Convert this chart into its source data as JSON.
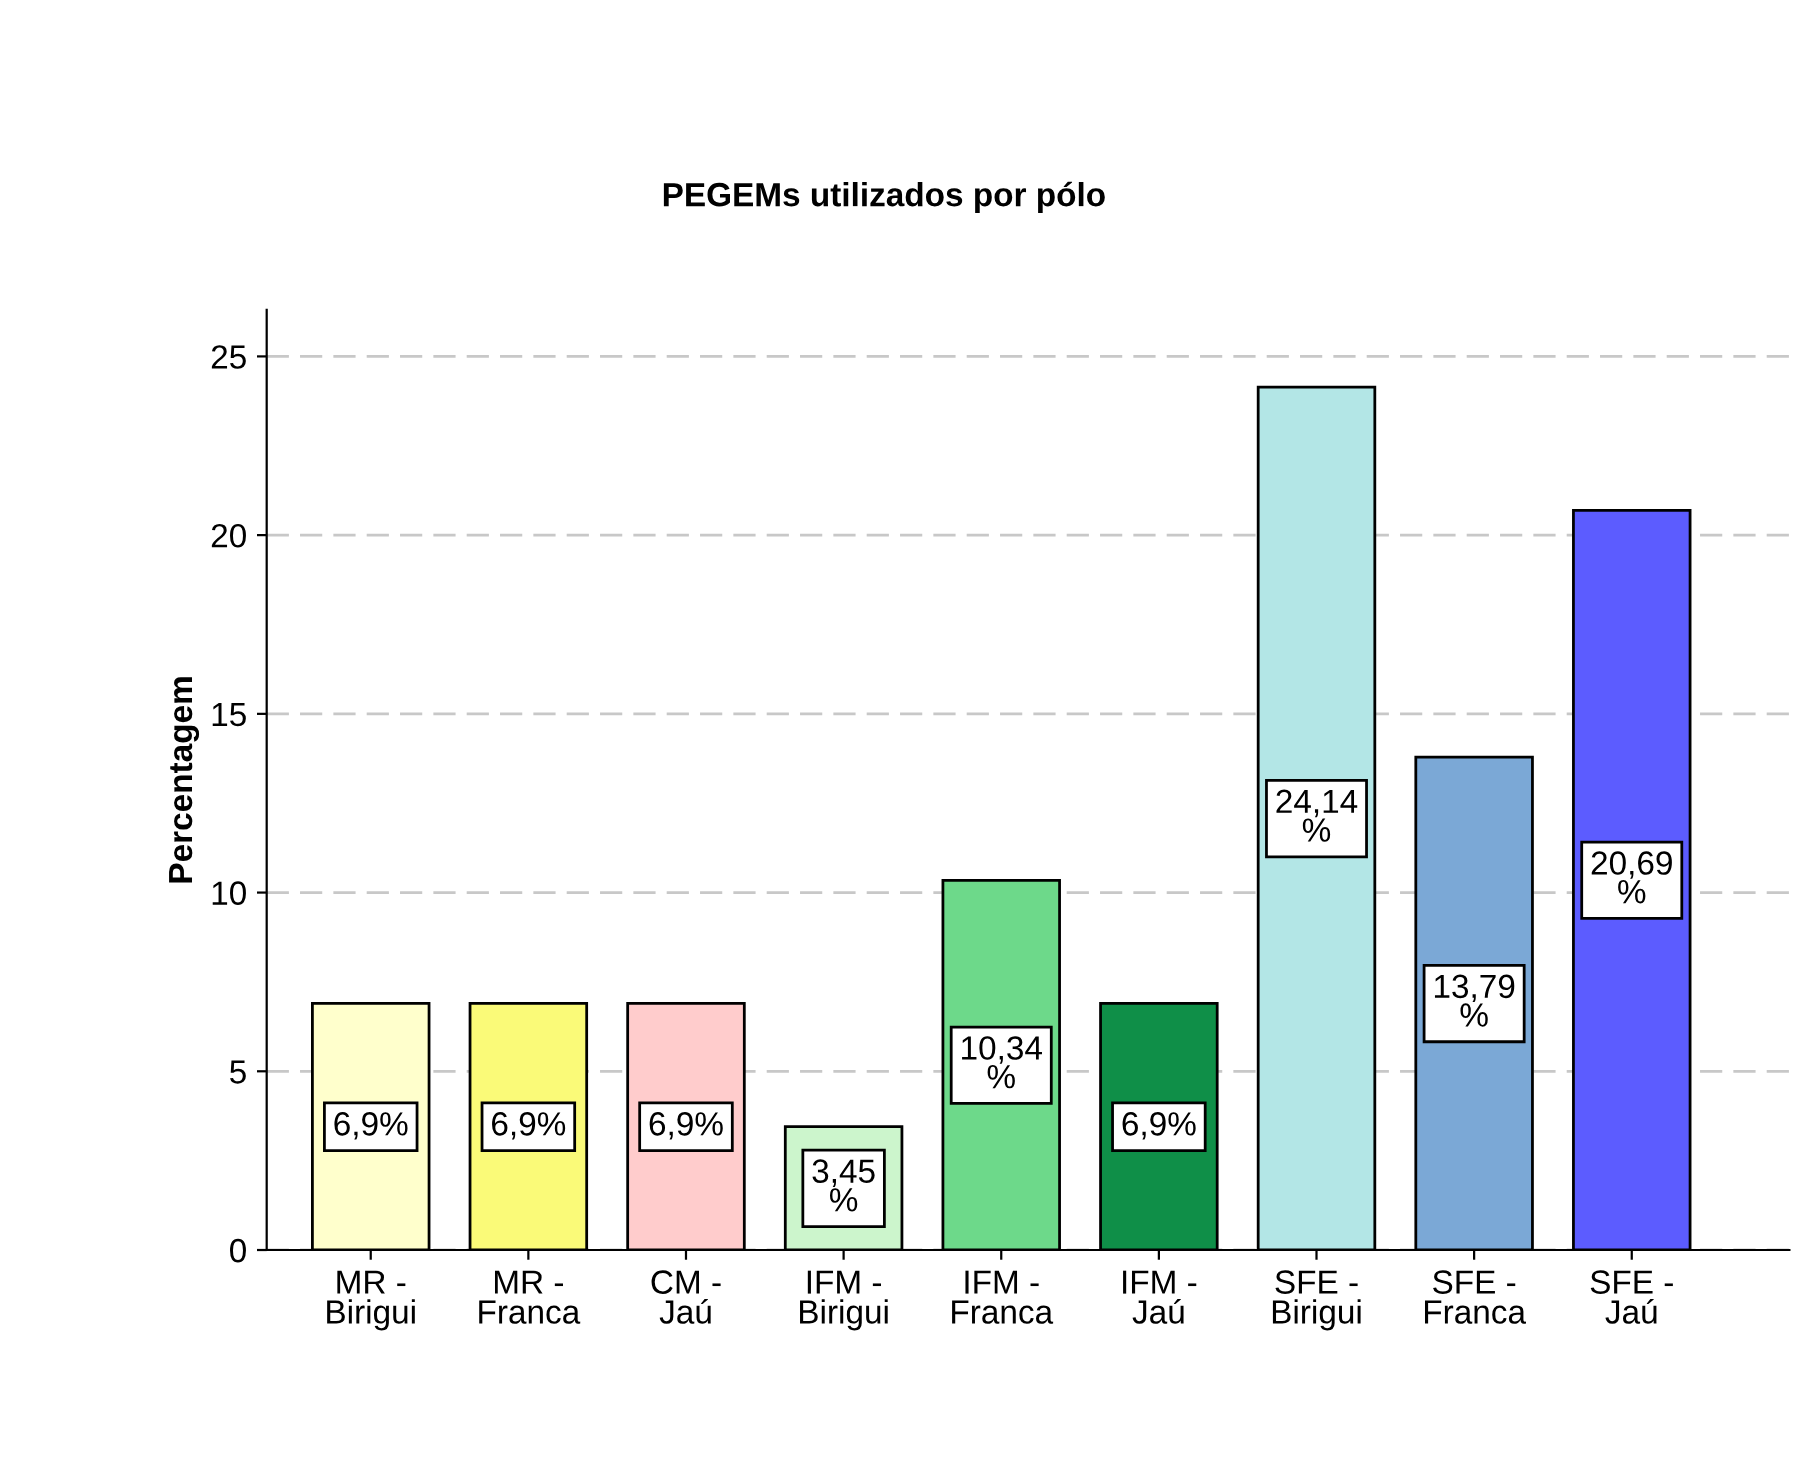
{
  "chart_data": {
    "type": "bar",
    "title": "PEGEMs utilizados por pólo",
    "ylabel": "Percentagem",
    "categories": [
      "MR -\nBirigui",
      "MR -\nFranca",
      "CM -\nJaú",
      "IFM -\nBirigui",
      "IFM -\nFranca",
      "IFM -\nJaú",
      "SFE -\nBirigui",
      "SFE -\nFranca",
      "SFE -\nJaú"
    ],
    "values": [
      6.9,
      6.9,
      6.9,
      3.45,
      10.34,
      6.9,
      24.14,
      13.79,
      20.69
    ],
    "colors": [
      "#ffffcc",
      "#fafa78",
      "#ffcccc",
      "#ccf5cc",
      "#6dd98a",
      "#0f8f48",
      "#b3e6e6",
      "#7ba8d6",
      "#5c5cff"
    ],
    "value_labels": [
      "6,9%",
      "6,9%",
      "6,9%",
      "3,45\n%",
      "10,34\n%",
      "6,9%",
      "24,14\n%",
      "13,79\n%",
      "20,69\n%"
    ],
    "ylim": [
      0,
      26.3
    ],
    "yticks": [
      0,
      5,
      10,
      15,
      20,
      25
    ],
    "grid": "y",
    "legend": false
  }
}
